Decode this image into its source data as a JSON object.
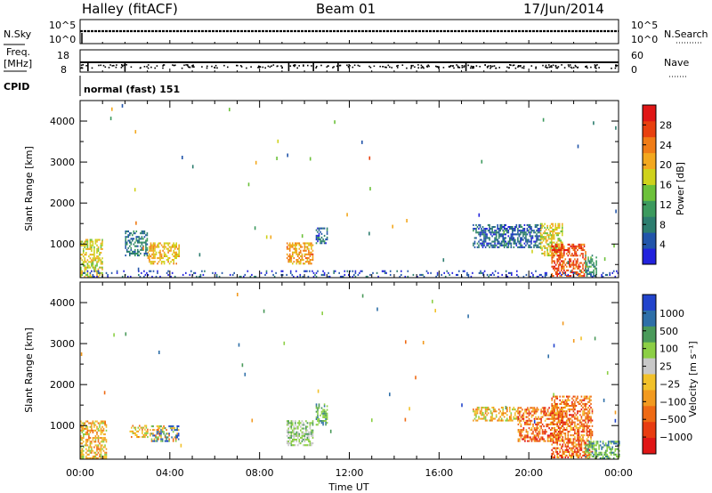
{
  "header": {
    "station": "Halley (fitACF)",
    "beam": "Beam 01",
    "date": "17/Jun/2014"
  },
  "strip1": {
    "left_label": "N.Sky",
    "right_label": "N.Search",
    "left_ticks": [
      "10^5",
      "10^0"
    ],
    "right_ticks": [
      "10^5",
      "10^0"
    ]
  },
  "strip2": {
    "left_label_1": "Freq.",
    "left_label_2": "[MHz]",
    "right_label": "Nave",
    "left_ticks": [
      "18",
      "8"
    ],
    "right_ticks": [
      "60",
      "0"
    ]
  },
  "cpid": {
    "label": "CPID",
    "text": "normal (fast) 151"
  },
  "colors": {
    "power": [
      "#2222dd",
      "#2255aa",
      "#2d7d6f",
      "#3c9a5e",
      "#6cc13a",
      "#cfd21c",
      "#f3a81e",
      "#f07c16",
      "#e8400f",
      "#e01616"
    ],
    "velocity": [
      "#2244cc",
      "#2e6fa8",
      "#4a9a5a",
      "#8ccf45",
      "#c8c8c8",
      "#f2c12a",
      "#f29a1f",
      "#ef6a14",
      "#e83c11",
      "#e01616"
    ]
  },
  "chart_data": [
    {
      "type": "heatmap",
      "quantity": "power",
      "ylabel": "Slant Range [km]",
      "colorbar_label": "Power [dB]",
      "colorbar_ticks": [
        "4",
        "8",
        "12",
        "16",
        "20",
        "24",
        "28"
      ],
      "x_ticks": [
        "00:00",
        "04:00",
        "08:00",
        "12:00",
        "16:00",
        "20:00",
        "00:00"
      ],
      "y_ticks": [
        "1000",
        "2000",
        "3000",
        "4000"
      ],
      "xlim_hours": [
        0,
        24
      ],
      "ylim_km": [
        180,
        4500
      ],
      "clim_db": [
        0,
        32
      ],
      "features": [
        {
          "t0": 0.0,
          "t1": 1.0,
          "r0": 180,
          "r1": 1100,
          "level": 18
        },
        {
          "t0": 3.0,
          "t1": 4.4,
          "r0": 500,
          "r1": 1000,
          "level": 20
        },
        {
          "t0": 2.0,
          "t1": 3.0,
          "r0": 700,
          "r1": 1300,
          "level": 8
        },
        {
          "t0": 9.2,
          "t1": 10.4,
          "r0": 500,
          "r1": 1000,
          "level": 22
        },
        {
          "t0": 10.5,
          "t1": 11.0,
          "r0": 1000,
          "r1": 1400,
          "level": 6
        },
        {
          "t0": 17.5,
          "t1": 20.5,
          "r0": 900,
          "r1": 1450,
          "level": 6
        },
        {
          "t0": 20.5,
          "t1": 21.5,
          "r0": 700,
          "r1": 1500,
          "level": 18
        },
        {
          "t0": 21.0,
          "t1": 22.5,
          "r0": 200,
          "r1": 1000,
          "level": 26
        },
        {
          "t0": 22.5,
          "t1": 23.0,
          "r0": 200,
          "r1": 700,
          "level": 10
        },
        {
          "t0": 0.0,
          "t1": 24.0,
          "r0": 180,
          "r1": 350,
          "level": 4
        }
      ]
    },
    {
      "type": "heatmap",
      "quantity": "velocity",
      "ylabel": "Slant Range [km]",
      "xlabel": "Time UT",
      "colorbar_label": "Velocity [m s⁻¹]",
      "colorbar_ticks": [
        "1000",
        "500",
        "100",
        "25",
        "−25",
        "−100",
        "−500",
        "−1000"
      ],
      "x_ticks": [
        "00:00",
        "04:00",
        "08:00",
        "12:00",
        "16:00",
        "20:00",
        "00:00"
      ],
      "y_ticks": [
        "1000",
        "2000",
        "3000",
        "4000"
      ],
      "xlim_hours": [
        0,
        24
      ],
      "ylim_km": [
        180,
        4500
      ],
      "features": [
        {
          "t0": 0.0,
          "t1": 1.2,
          "r0": 180,
          "r1": 1100,
          "level": "negative"
        },
        {
          "t0": 2.2,
          "t1": 3.0,
          "r0": 700,
          "r1": 1000,
          "level": "negative"
        },
        {
          "t0": 3.1,
          "t1": 4.4,
          "r0": 600,
          "r1": 1000,
          "level": "mixed"
        },
        {
          "t0": 9.2,
          "t1": 10.4,
          "r0": 500,
          "r1": 1100,
          "level": "near-zero"
        },
        {
          "t0": 10.5,
          "t1": 11.0,
          "r0": 1000,
          "r1": 1500,
          "level": "positive"
        },
        {
          "t0": 17.5,
          "t1": 19.5,
          "r0": 1100,
          "r1": 1450,
          "level": "negative"
        },
        {
          "t0": 19.5,
          "t1": 21.5,
          "r0": 600,
          "r1": 1450,
          "level": "negative-strong"
        },
        {
          "t0": 21.0,
          "t1": 22.8,
          "r0": 200,
          "r1": 1700,
          "level": "negative-strong"
        },
        {
          "t0": 22.5,
          "t1": 24.0,
          "r0": 180,
          "r1": 600,
          "level": "positive"
        }
      ]
    }
  ]
}
